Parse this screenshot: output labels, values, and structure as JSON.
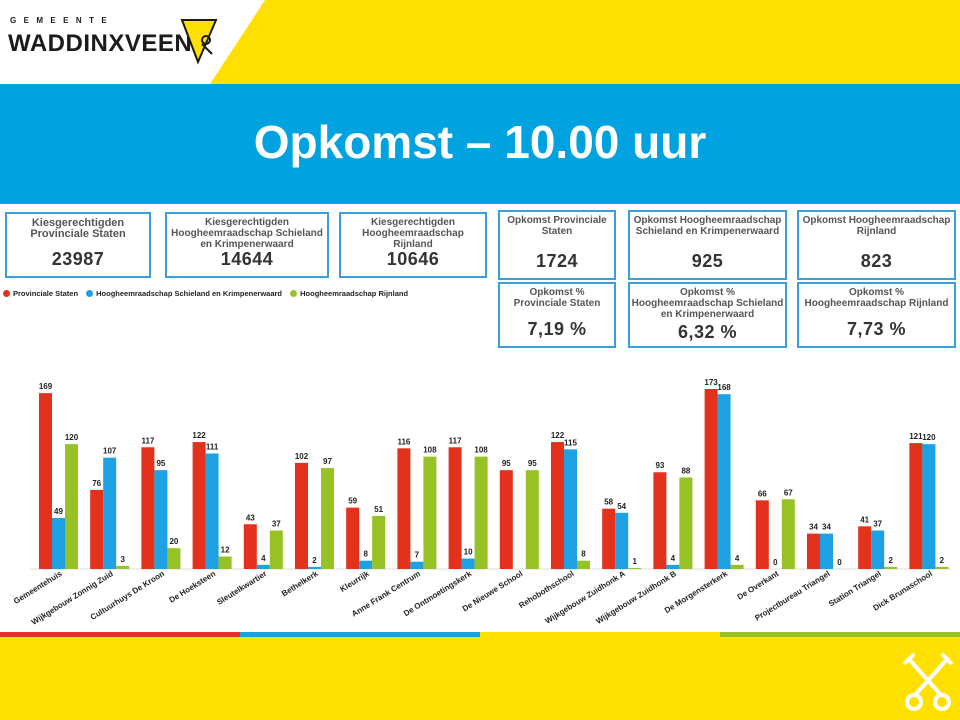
{
  "header": {
    "brand_top": "GEMEENTE",
    "brand_name": "WADDINXVEEN",
    "title": "Opkomst – 10.00 uur"
  },
  "colors": {
    "yellow": "#ffe000",
    "blue": "#00a3e0",
    "red": "#e3321b",
    "lightblue": "#1da1e2",
    "green": "#96c225"
  },
  "cards": [
    {
      "label": "Kiesgerechtigden Provinciale Staten",
      "value": "23987"
    },
    {
      "label": "Kiesgerechtigden Hoogheemraadschap Schieland en Krimpenerwaard",
      "value": "14644"
    },
    {
      "label": "Kiesgerechtigden Hoogheemraadschap Rijnland",
      "value": "10646"
    },
    {
      "label": "Opkomst Provinciale Staten",
      "value": "1724"
    },
    {
      "label": "Opkomst Hoogheemraadschap Schieland en Krimpenerwaard",
      "value": "925"
    },
    {
      "label": "Opkomst Hoogheemraadschap Rijnland",
      "value": "823"
    },
    {
      "label": "Opkomst % Provinciale Staten",
      "value": "7,19 %"
    },
    {
      "label": "Opkomst % Hoogheemraadschap Schieland en Krimpenerwaard",
      "value": "6,32 %"
    },
    {
      "label": "Opkomst % Hoogheemraadschap Rijnland",
      "value": "7,73 %"
    }
  ],
  "chart_data": {
    "type": "bar",
    "categories": [
      "Gemeentehuis",
      "Wijkgebouw Zonnig Zuid",
      "Cultuurhuys De Kroon",
      "De Hoeksteen",
      "Sleutelkwartier",
      "Bethelkerk",
      "Kleurrijk",
      "Anne Frank Centrum",
      "De Ontmoetingskerk",
      "De Nieuwe School",
      "Rehobothschool",
      "Wijkgebouw Zuidhonk A",
      "Wijkgebouw Zuidhonk B",
      "De Morgensterkerk",
      "De Overkant",
      "Projectbureau Triangel",
      "Station Triangel",
      "Dick Brunaschool"
    ],
    "series": [
      {
        "name": "Provinciale Staten",
        "color": "#e3321b",
        "values": [
          169,
          76,
          117,
          122,
          43,
          102,
          59,
          116,
          117,
          95,
          122,
          58,
          93,
          173,
          66,
          34,
          41,
          121
        ]
      },
      {
        "name": "Hoogheemraadschap Schieland en Krimpenerwaard",
        "color": "#1da1e2",
        "values": [
          49,
          107,
          95,
          111,
          4,
          2,
          8,
          7,
          10,
          null,
          115,
          54,
          4,
          168,
          0,
          34,
          37,
          120
        ]
      },
      {
        "name": "Hoogheemraadschap Rijnland",
        "color": "#96c225",
        "values": [
          120,
          3,
          20,
          12,
          37,
          97,
          51,
          108,
          108,
          95,
          8,
          1,
          88,
          4,
          67,
          0,
          2,
          2
        ]
      }
    ],
    "legend_position": "top-left",
    "grid": false
  }
}
